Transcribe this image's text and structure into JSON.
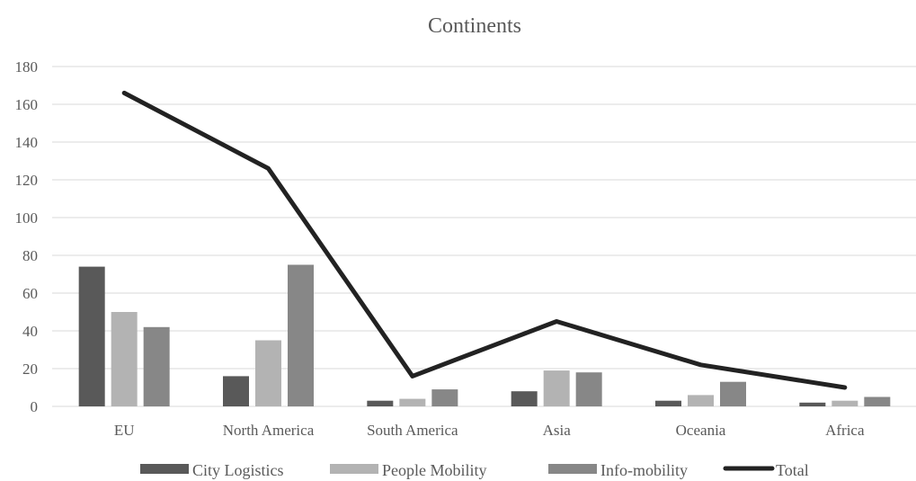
{
  "chart_data": {
    "type": "bar",
    "title": "Continents",
    "xlabel": "",
    "ylabel": "",
    "ylim": [
      0,
      180
    ],
    "yticks": [
      0,
      20,
      40,
      60,
      80,
      100,
      120,
      140,
      160,
      180
    ],
    "grid": true,
    "legend": "bottom",
    "categories": [
      "EU",
      "North America",
      "South America",
      "Asia",
      "Oceania",
      "Africa"
    ],
    "series": [
      {
        "name": "City Logistics",
        "kind": "bar",
        "color": "#595959",
        "values": [
          74,
          16,
          3,
          8,
          3,
          2
        ]
      },
      {
        "name": "People Mobility",
        "kind": "bar",
        "color": "#b3b3b3",
        "values": [
          50,
          35,
          4,
          19,
          6,
          3
        ]
      },
      {
        "name": "Info-mobility",
        "kind": "bar",
        "color": "#878787",
        "values": [
          42,
          75,
          9,
          18,
          13,
          5
        ]
      },
      {
        "name": "Total",
        "kind": "line",
        "color": "#222222",
        "values": [
          166,
          126,
          16,
          45,
          22,
          10
        ]
      }
    ]
  }
}
